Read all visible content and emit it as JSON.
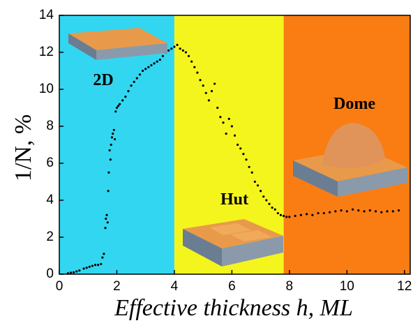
{
  "chart_data": {
    "type": "scatter",
    "x_label": "Effective thickness h, ML",
    "y_label": "1/N, %",
    "xlim": [
      0,
      12.2
    ],
    "ylim": [
      0,
      14
    ],
    "xticks": [
      0,
      2,
      4,
      6,
      8,
      10,
      12
    ],
    "yticks": [
      0,
      2,
      4,
      6,
      8,
      10,
      12,
      14
    ],
    "color": "#000000",
    "regions": [
      {
        "label": "2D",
        "from": 0,
        "to": 4,
        "color": "#33d6f0"
      },
      {
        "label": "Hut",
        "from": 4,
        "to": 7.8,
        "color": "#f5f51e"
      },
      {
        "label": "Dome",
        "from": 7.8,
        "to": 12.2,
        "color": "#fa7d14"
      }
    ],
    "x": [
      0.3,
      0.4,
      0.5,
      0.6,
      0.7,
      0.85,
      0.95,
      1.05,
      1.15,
      1.25,
      1.35,
      1.45,
      1.5,
      1.55,
      1.6,
      1.62,
      1.65,
      1.68,
      1.7,
      1.72,
      1.75,
      1.78,
      1.8,
      1.83,
      1.86,
      1.9,
      1.93,
      1.96,
      2.0,
      2.05,
      2.1,
      2.2,
      2.3,
      2.4,
      2.5,
      2.6,
      2.7,
      2.8,
      2.9,
      3.0,
      3.1,
      3.2,
      3.3,
      3.4,
      3.5,
      3.6,
      3.7,
      3.8,
      3.9,
      4.0,
      4.1,
      4.2,
      4.3,
      4.4,
      4.5,
      4.6,
      4.7,
      4.8,
      4.9,
      5.0,
      5.1,
      5.2,
      5.3,
      5.4,
      5.5,
      5.6,
      5.7,
      5.8,
      5.9,
      6.0,
      6.1,
      6.2,
      6.3,
      6.4,
      6.5,
      6.6,
      6.7,
      6.8,
      6.9,
      7.0,
      7.1,
      7.2,
      7.3,
      7.4,
      7.5,
      7.6,
      7.7,
      7.8,
      7.9,
      8.0,
      8.2,
      8.4,
      8.6,
      8.8,
      9.0,
      9.2,
      9.4,
      9.6,
      9.8,
      10.0,
      10.2,
      10.4,
      10.6,
      10.8,
      11.0,
      11.2,
      11.4,
      11.6,
      11.8
    ],
    "values": [
      0.05,
      0.08,
      0.1,
      0.15,
      0.2,
      0.3,
      0.35,
      0.4,
      0.45,
      0.5,
      0.5,
      0.55,
      0.9,
      1.1,
      2.5,
      3.0,
      3.2,
      2.8,
      4.5,
      5.5,
      6.7,
      6.2,
      7.0,
      7.4,
      7.6,
      7.8,
      7.3,
      8.8,
      9.0,
      9.1,
      9.2,
      9.4,
      9.6,
      9.9,
      10.2,
      10.4,
      10.6,
      10.8,
      11.0,
      11.1,
      11.2,
      11.3,
      11.4,
      11.5,
      11.6,
      11.8,
      12.0,
      12.1,
      12.2,
      12.3,
      12.4,
      12.2,
      12.1,
      12.0,
      11.8,
      11.5,
      11.2,
      10.9,
      10.5,
      10.2,
      9.8,
      9.4,
      9.9,
      10.3,
      9.0,
      8.5,
      8.2,
      7.6,
      8.4,
      8.0,
      7.5,
      7.0,
      6.8,
      6.5,
      6.2,
      5.8,
      5.5,
      5.0,
      4.8,
      4.5,
      4.2,
      4.0,
      3.8,
      3.6,
      3.5,
      3.3,
      3.2,
      3.15,
      3.1,
      3.1,
      3.15,
      3.2,
      3.25,
      3.2,
      3.3,
      3.3,
      3.35,
      3.4,
      3.45,
      3.4,
      3.5,
      3.45,
      3.4,
      3.45,
      3.4,
      3.35,
      3.4,
      3.4,
      3.45
    ]
  }
}
